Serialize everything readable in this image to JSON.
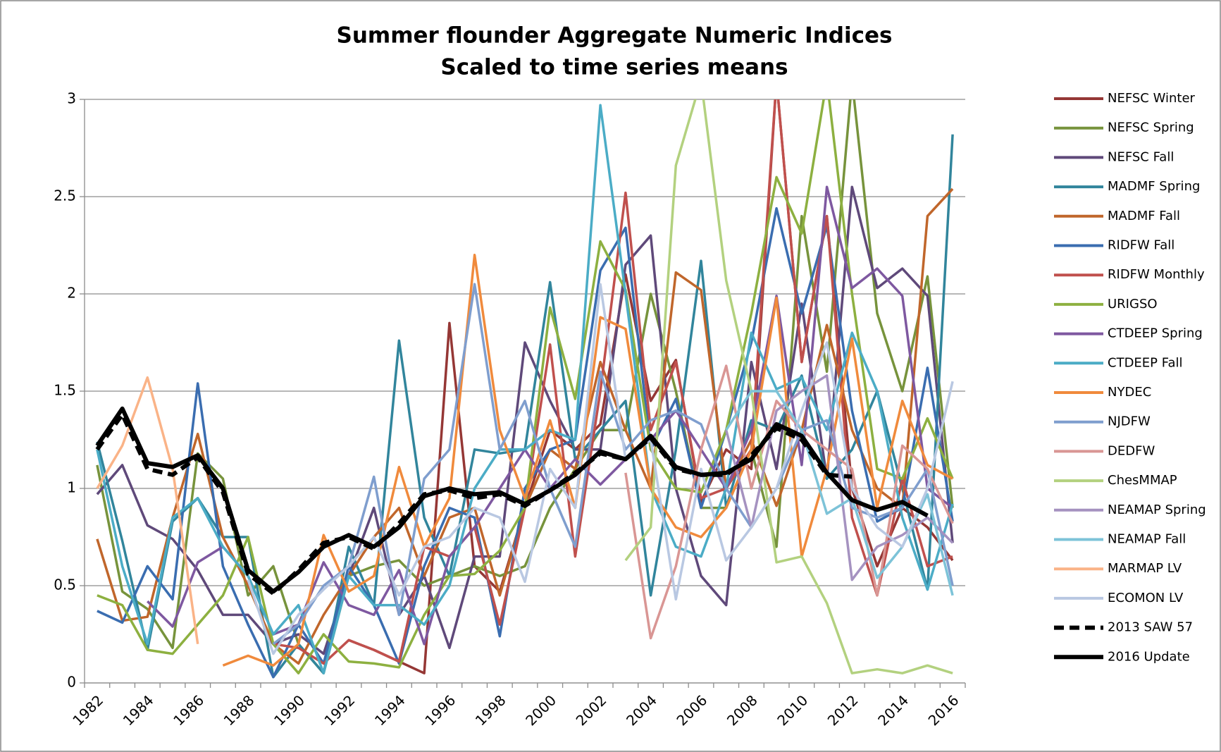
{
  "chart_data": {
    "type": "line",
    "title": "Summer flounder Aggregate Numeric Indices",
    "subtitle": "Scaled to time series means",
    "categories": [
      "1982",
      null,
      "1984",
      null,
      "1986",
      null,
      "1988",
      null,
      "1990",
      null,
      "1992",
      null,
      "1994",
      null,
      "1996",
      null,
      "1998",
      null,
      "2000",
      null,
      "2002",
      null,
      "2004",
      null,
      "2006",
      null,
      "2008",
      null,
      "2010",
      null,
      "2012",
      null,
      "2014",
      null,
      "2016"
    ],
    "ylim": [
      0,
      3
    ],
    "yticks": [
      0,
      0.5,
      1,
      1.5,
      2,
      2.5,
      3
    ],
    "grid": true,
    "legend": "right",
    "series": [
      {
        "name": "NEFSC Winter",
        "color": "#953735",
        "values": [
          null,
          null,
          null,
          null,
          null,
          null,
          null,
          null,
          null,
          null,
          0.22,
          0.17,
          0.11,
          0.05,
          1.85,
          0.6,
          0.47,
          0.9,
          1.3,
          1.2,
          1.33,
          2.1,
          1.45,
          1.66,
          0.93,
          1.2,
          1.1,
          3.1,
          1.65,
          2.4,
          1.0,
          0.6,
          0.9,
          0.8,
          0.63
        ]
      },
      {
        "name": "NEFSC Spring",
        "color": "#77933c",
        "values": [
          1.12,
          0.47,
          0.38,
          0.18,
          1.18,
          1.05,
          0.45,
          0.6,
          0.2,
          0.05,
          0.55,
          0.6,
          0.63,
          0.5,
          0.55,
          0.6,
          0.55,
          0.6,
          0.9,
          1.1,
          1.3,
          1.3,
          2.0,
          1.5,
          0.9,
          0.9,
          1.2,
          0.7,
          2.4,
          1.6,
          3.1,
          1.9,
          1.5,
          2.09,
          0.9
        ]
      },
      {
        "name": "NEFSC Fall",
        "color": "#5f497a",
        "values": [
          0.97,
          1.12,
          0.81,
          0.74,
          0.58,
          0.35,
          0.35,
          0.2,
          0.25,
          0.15,
          0.55,
          0.9,
          0.35,
          0.55,
          0.18,
          0.65,
          0.65,
          1.75,
          1.45,
          1.2,
          1.2,
          2.15,
          2.3,
          1.0,
          0.55,
          0.4,
          1.65,
          1.1,
          1.95,
          1.05,
          2.55,
          2.03,
          2.13,
          1.99,
          0.72
        ]
      },
      {
        "name": "MADMF Spring",
        "color": "#31859c",
        "values": [
          1.24,
          0.73,
          0.17,
          0.83,
          0.95,
          0.75,
          0.75,
          0.03,
          0.2,
          0.05,
          0.7,
          0.4,
          1.76,
          0.85,
          0.55,
          1.2,
          1.18,
          1.2,
          2.06,
          1.15,
          1.3,
          1.45,
          0.45,
          1.2,
          2.17,
          0.9,
          1.35,
          1.3,
          1.58,
          1.05,
          1.2,
          1.5,
          1.0,
          0.48,
          2.82
        ]
      },
      {
        "name": "MADMF Fall",
        "color": "#c0662b",
        "values": [
          0.74,
          0.32,
          0.34,
          0.85,
          1.28,
          0.75,
          0.5,
          0.2,
          0.1,
          0.35,
          0.55,
          0.75,
          0.9,
          0.55,
          0.85,
          0.9,
          0.45,
          0.9,
          1.2,
          1.1,
          1.65,
          1.3,
          1.0,
          2.11,
          2.02,
          1.0,
          1.25,
          0.91,
          1.3,
          1.84,
          1.3,
          1.0,
          0.9,
          2.4,
          2.54
        ]
      },
      {
        "name": "RIDFW Fall",
        "color": "#3a6db0",
        "values": [
          0.37,
          0.31,
          0.6,
          0.43,
          1.54,
          0.6,
          0.3,
          0.03,
          0.3,
          0.1,
          0.6,
          0.4,
          0.1,
          0.6,
          0.9,
          0.85,
          0.24,
          1.0,
          1.2,
          1.25,
          2.12,
          2.34,
          1.2,
          1.46,
          0.9,
          1.3,
          1.75,
          2.44,
          1.9,
          2.35,
          1.4,
          0.83,
          0.9,
          1.62,
          0.83
        ]
      },
      {
        "name": "RIDFW Monthly",
        "color": "#c0504d",
        "values": [
          null,
          null,
          null,
          null,
          null,
          null,
          null,
          0.2,
          0.18,
          0.1,
          0.22,
          0.17,
          0.11,
          0.7,
          0.65,
          0.8,
          0.3,
          0.9,
          1.74,
          0.65,
          1.5,
          2.52,
          1.3,
          1.65,
          0.95,
          1.0,
          1.2,
          3.1,
          1.65,
          2.4,
          0.85,
          0.45,
          1.05,
          0.6,
          0.65
        ]
      },
      {
        "name": "URIGSO",
        "color": "#8db040",
        "values": [
          0.45,
          0.4,
          0.17,
          0.15,
          0.3,
          0.45,
          0.75,
          0.2,
          0.05,
          0.25,
          0.11,
          0.1,
          0.08,
          0.35,
          0.55,
          0.56,
          0.68,
          0.9,
          1.93,
          1.46,
          2.27,
          2.02,
          1.2,
          1.0,
          0.98,
          1.3,
          1.9,
          2.6,
          2.31,
          3.1,
          2.0,
          1.1,
          1.05,
          1.36,
          1.05
        ]
      },
      {
        "name": "CTDEEP Spring",
        "color": "#7e58a0",
        "values": [
          null,
          null,
          0.42,
          0.29,
          0.62,
          0.7,
          0.55,
          0.25,
          0.3,
          0.62,
          0.4,
          0.35,
          0.58,
          0.2,
          0.65,
          0.8,
          1.0,
          1.2,
          1.0,
          1.15,
          1.02,
          1.15,
          1.25,
          1.4,
          1.2,
          1.0,
          1.3,
          1.99,
          1.12,
          2.55,
          2.03,
          2.13,
          1.99,
          1.0,
          0.9
        ]
      },
      {
        "name": "CTDEEP Fall",
        "color": "#4bacc6",
        "values": [
          1.2,
          0.6,
          0.2,
          0.85,
          0.95,
          0.7,
          0.55,
          0.25,
          0.4,
          0.05,
          0.55,
          0.4,
          0.4,
          0.3,
          0.5,
          1.0,
          1.2,
          1.2,
          1.3,
          1.25,
          2.97,
          2.0,
          1.0,
          0.7,
          0.65,
          1.0,
          1.8,
          1.51,
          1.57,
          1.3,
          1.8,
          1.5,
          0.85,
          0.48,
          0.92
        ]
      },
      {
        "name": "NYDEC",
        "color": "#f08a3c",
        "values": [
          null,
          null,
          null,
          null,
          null,
          0.09,
          0.14,
          0.09,
          0.2,
          0.76,
          0.47,
          0.55,
          1.11,
          0.7,
          0.95,
          2.2,
          1.3,
          0.95,
          1.35,
          0.9,
          1.88,
          1.82,
          1.0,
          0.8,
          0.75,
          0.9,
          1.2,
          1.98,
          0.65,
          1.1,
          1.77,
          0.9,
          1.45,
          1.12,
          1.05
        ]
      },
      {
        "name": "NJDFW",
        "color": "#7f9ece",
        "values": [
          null,
          null,
          null,
          null,
          null,
          null,
          null,
          0.2,
          0.3,
          0.5,
          0.6,
          1.06,
          0.35,
          1.05,
          1.2,
          2.05,
          1.2,
          1.45,
          1.0,
          0.7,
          1.6,
          1.2,
          1.35,
          1.4,
          1.33,
          1.0,
          0.8,
          1.0,
          1.3,
          1.35,
          0.9,
          0.85,
          0.9,
          1.1,
          0.5
        ]
      },
      {
        "name": "DEDFW",
        "color": "#d99694",
        "values": [
          null,
          null,
          null,
          null,
          null,
          null,
          null,
          null,
          null,
          null,
          null,
          null,
          null,
          null,
          null,
          null,
          null,
          null,
          null,
          null,
          null,
          1.08,
          0.23,
          0.6,
          1.2,
          1.63,
          1.0,
          1.45,
          1.3,
          1.2,
          1.1,
          0.45,
          1.22,
          1.1,
          0.82
        ]
      },
      {
        "name": "ChesMMAP",
        "color": "#b3d17f",
        "values": [
          null,
          null,
          null,
          null,
          null,
          null,
          null,
          null,
          null,
          null,
          null,
          null,
          null,
          null,
          null,
          null,
          null,
          null,
          null,
          null,
          null,
          0.63,
          0.8,
          2.66,
          3.1,
          2.07,
          1.5,
          0.62,
          0.65,
          0.41,
          0.05,
          0.07,
          0.05,
          0.09,
          0.05
        ]
      },
      {
        "name": "NEAMAP Spring",
        "color": "#a592c0",
        "values": [
          null,
          null,
          null,
          null,
          null,
          null,
          null,
          null,
          null,
          null,
          null,
          null,
          null,
          null,
          null,
          null,
          null,
          null,
          null,
          null,
          null,
          null,
          null,
          null,
          null,
          1.3,
          0.8,
          1.4,
          1.5,
          1.58,
          0.53,
          0.7,
          0.76,
          0.85,
          0.72
        ]
      },
      {
        "name": "NEAMAP Fall",
        "color": "#7dc3d8",
        "values": [
          null,
          null,
          null,
          null,
          null,
          null,
          null,
          null,
          null,
          null,
          null,
          null,
          null,
          null,
          null,
          null,
          null,
          null,
          null,
          null,
          null,
          null,
          null,
          null,
          null,
          1.3,
          1.5,
          1.5,
          1.3,
          0.87,
          0.95,
          0.54,
          0.7,
          0.97,
          0.45
        ]
      },
      {
        "name": "MARMAP LV",
        "color": "#fab387",
        "values": [
          1.0,
          1.22,
          1.57,
          1.1,
          0.2,
          null,
          null,
          null,
          null,
          null,
          null,
          null,
          null,
          null,
          null,
          null,
          null,
          null,
          null,
          null,
          null,
          null,
          null,
          null,
          null,
          null,
          null,
          null,
          null,
          null,
          null,
          null,
          null,
          null,
          null
        ]
      },
      {
        "name": "ECOMON LV",
        "color": "#b9c8e2",
        "values": [
          null,
          null,
          null,
          null,
          null,
          null,
          0.53,
          0.15,
          0.35,
          0.48,
          0.6,
          0.75,
          0.45,
          0.7,
          0.75,
          0.9,
          0.85,
          0.52,
          1.1,
          0.9,
          2.05,
          1.15,
          1.25,
          0.43,
          1.1,
          0.63,
          0.8,
          1.0,
          1.4,
          1.75,
          1.0,
          0.8,
          0.7,
          1.0,
          1.55
        ]
      },
      {
        "name": "2013 SAW 57",
        "color": "#000000",
        "dashed": true,
        "values": [
          1.2,
          1.38,
          1.1,
          1.07,
          1.16,
          0.98,
          0.56,
          0.46,
          0.58,
          0.72,
          0.75,
          0.69,
          0.82,
          0.97,
          0.99,
          0.95,
          0.97,
          0.91,
          0.99,
          1.08,
          1.18,
          1.15,
          1.26,
          1.1,
          1.07,
          1.07,
          1.17,
          1.31,
          1.25,
          1.07,
          1.06,
          null,
          null,
          null,
          null
        ]
      },
      {
        "name": "2016 Update",
        "color": "#000000",
        "values": [
          1.22,
          1.41,
          1.13,
          1.11,
          1.17,
          1.0,
          0.58,
          0.47,
          0.57,
          0.7,
          0.76,
          0.7,
          0.8,
          0.96,
          1.0,
          0.97,
          0.98,
          0.92,
          0.99,
          1.07,
          1.19,
          1.15,
          1.27,
          1.11,
          1.07,
          1.08,
          1.15,
          1.33,
          1.27,
          1.08,
          0.94,
          0.89,
          0.93,
          0.86,
          null
        ]
      }
    ]
  }
}
